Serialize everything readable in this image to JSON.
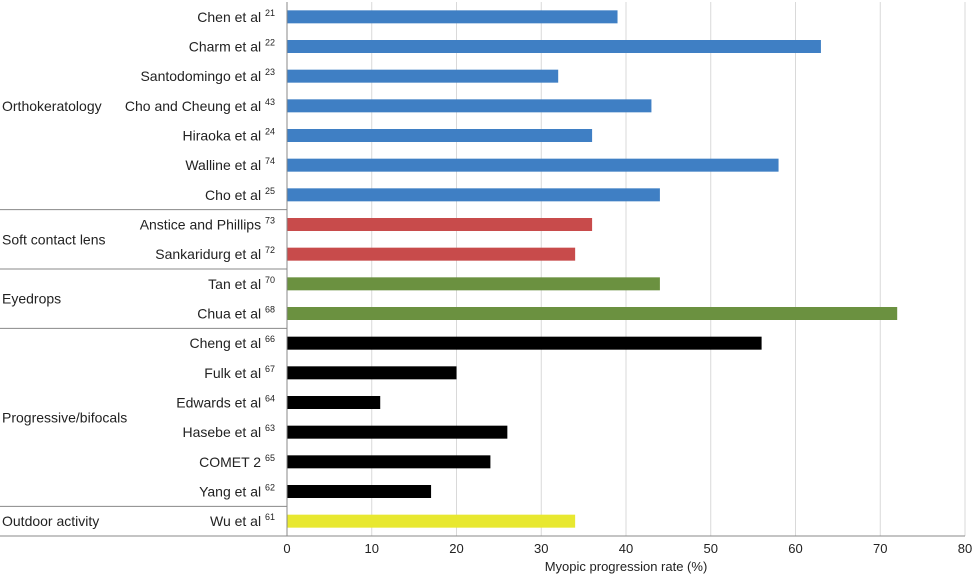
{
  "chart_data": {
    "type": "bar",
    "orientation": "horizontal",
    "xlabel": "Myopic progression rate (%)",
    "xlim": [
      0,
      80
    ],
    "xticks": [
      0,
      10,
      20,
      30,
      40,
      50,
      60,
      70,
      80
    ],
    "grid": "vertical",
    "groups": [
      {
        "name": "Orthokeratology",
        "color": "#3f7fc4",
        "studies": [
          {
            "label": "Chen et al",
            "ref": "21",
            "value": 39
          },
          {
            "label": "Charm et al",
            "ref": "22",
            "value": 63
          },
          {
            "label": "Santodomingo et al",
            "ref": "23",
            "value": 32
          },
          {
            "label": "Cho and Cheung et al",
            "ref": "43",
            "value": 43
          },
          {
            "label": "Hiraoka et al",
            "ref": "24",
            "value": 36
          },
          {
            "label": "Walline et al",
            "ref": "74",
            "value": 58
          },
          {
            "label": "Cho et al",
            "ref": "25",
            "value": 44
          }
        ]
      },
      {
        "name": "Soft contact lens",
        "color": "#c84b4b",
        "studies": [
          {
            "label": "Anstice and Phillips",
            "ref": "73",
            "value": 36
          },
          {
            "label": "Sankaridurg et al",
            "ref": "72",
            "value": 34
          }
        ]
      },
      {
        "name": "Eyedrops",
        "color": "#6b9140",
        "studies": [
          {
            "label": "Tan et al",
            "ref": "70",
            "value": 44
          },
          {
            "label": "Chua et al",
            "ref": "68",
            "value": 72
          }
        ]
      },
      {
        "name": "Progressive/bifocals",
        "color": "#000000",
        "studies": [
          {
            "label": "Cheng et al",
            "ref": "66",
            "value": 56
          },
          {
            "label": "Fulk et al",
            "ref": "67",
            "value": 20
          },
          {
            "label": "Edwards et al",
            "ref": "64",
            "value": 11
          },
          {
            "label": "Hasebe et al",
            "ref": "63",
            "value": 26
          },
          {
            "label": "COMET 2",
            "ref": "65",
            "value": 24
          },
          {
            "label": "Yang et al",
            "ref": "62",
            "value": 17
          }
        ]
      },
      {
        "name": "Outdoor activity",
        "color": "#e8e830",
        "studies": [
          {
            "label": "Wu et al",
            "ref": "61",
            "value": 34
          }
        ]
      }
    ]
  }
}
